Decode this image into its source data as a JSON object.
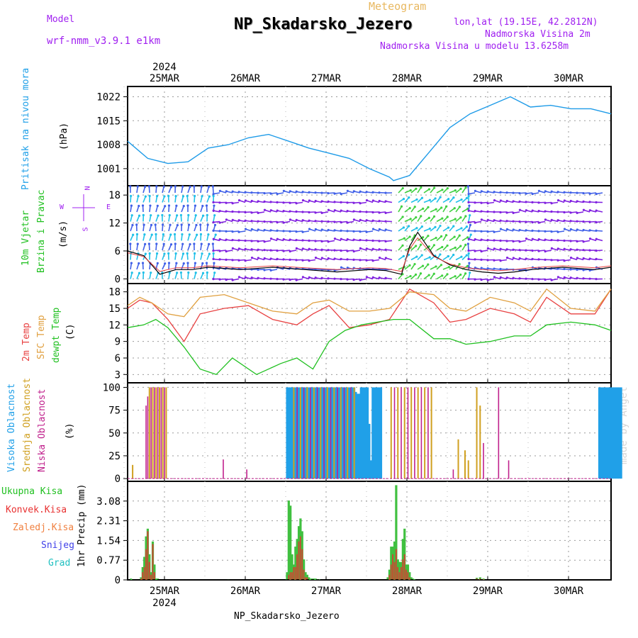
{
  "header": {
    "model_label": "Model",
    "model_name": "wrf-nmm_v3.9.1 e1km",
    "product": "Meteogram",
    "station": "NP_Skadarsko_Jezero",
    "lonlat": "lon,lat (19.15E, 42.2812N)",
    "elevation": "Nadmorska Visina 2m",
    "model_elevation": "Nadmorska Visina u modelu 13.6258m",
    "footer_station": "NP_Skadarsko_Jezero",
    "watermark": "made by Angel",
    "year": "2024"
  },
  "wind_compass": {
    "n": "N",
    "w": "W",
    "e": "E",
    "s": "S"
  },
  "colors": {
    "pressure": "#1e9be8",
    "temp2m": "#e84040",
    "sfc": "#e0a040",
    "dewpt": "#20c020",
    "high_cloud": "#20a0e8",
    "mid_cloud": "#d0a020",
    "low_cloud": "#c0208c",
    "precip_total": "#40c040",
    "precip_conv": "#e83030",
    "precip_frz": "#f08040",
    "precip_snow": "#4040e8",
    "precip_grad": "#20c0c0",
    "wind_purple": "#8020e0",
    "wind_cyan": "#20c0e8",
    "wind_green": "#40d040"
  },
  "chart_data": [
    {
      "type": "line",
      "panel": "pressure",
      "ylabel_main": "Pritisak na nivou mora",
      "ylabel_unit": "(hPa)",
      "yticks": [
        1001,
        1008,
        1015,
        1022
      ],
      "ylim": [
        996,
        1025
      ],
      "x_day": [
        0,
        0.25,
        0.5,
        0.75,
        1.0,
        1.25,
        1.5,
        1.75,
        2.0,
        2.25,
        2.5,
        2.75,
        3.0,
        3.25,
        3.3,
        3.5,
        3.75,
        4.0,
        4.25,
        4.5,
        4.75,
        5.0,
        5.25,
        5.5,
        5.75,
        6.0
      ],
      "values": [
        1009,
        1004,
        1002.5,
        1003,
        1007,
        1008,
        1010,
        1011,
        1009,
        1007,
        1005.5,
        1004,
        1001,
        998.5,
        997.5,
        999,
        1006,
        1013,
        1017,
        1019.5,
        1022,
        1019,
        1019.5,
        1018.5,
        1018.5,
        1017
      ]
    },
    {
      "type": "line",
      "panel": "wind",
      "ylabel_main": "10m Vjetar",
      "ylabel_main2": "Brzina i Pravac",
      "ylabel_unit": "(m/s)",
      "yticks": [
        0,
        6,
        12,
        18
      ],
      "ylim": [
        -1,
        20
      ],
      "x_day": [
        0,
        0.2,
        0.4,
        0.6,
        0.8,
        1.0,
        1.4,
        1.8,
        2.2,
        2.6,
        3.0,
        3.2,
        3.4,
        3.5,
        3.6,
        3.8,
        4.0,
        4.2,
        4.4,
        4.6,
        4.8,
        5.0,
        5.4,
        5.8,
        6.0
      ],
      "values": [
        6,
        5,
        1,
        2,
        2,
        2.5,
        2,
        2.5,
        2,
        1.5,
        2,
        1.8,
        1,
        7,
        10,
        5,
        3,
        2,
        1.5,
        1.2,
        1.5,
        2,
        2.5,
        2,
        2.5
      ]
    },
    {
      "type": "line",
      "panel": "temperature",
      "ylabel_2m": "2m Temp",
      "ylabel_sfc": "SFC Temp",
      "ylabel_dew": "dewpt Temp",
      "ylabel_unit": "(C)",
      "yticks": [
        3,
        6,
        9,
        12,
        15,
        18
      ],
      "ylim": [
        1.5,
        19.5
      ],
      "series": [
        {
          "name": "2m Temp",
          "x_day": [
            0,
            0.15,
            0.3,
            0.5,
            0.7,
            0.9,
            1.2,
            1.5,
            1.8,
            2.1,
            2.3,
            2.5,
            2.75,
            3.0,
            3.25,
            3.5,
            3.8,
            4.0,
            4.2,
            4.5,
            4.8,
            5.0,
            5.2,
            5.5,
            5.8,
            6.0
          ],
          "values": [
            15,
            16.5,
            16,
            13,
            9,
            14,
            15,
            15.5,
            13,
            12,
            14,
            15.5,
            11.5,
            12,
            13,
            18.5,
            16,
            12.5,
            13,
            15,
            14,
            12.5,
            17,
            14,
            14,
            18.5
          ]
        },
        {
          "name": "SFC Temp",
          "x_day": [
            0,
            0.15,
            0.3,
            0.5,
            0.7,
            0.9,
            1.2,
            1.5,
            1.8,
            2.1,
            2.3,
            2.5,
            2.75,
            3.0,
            3.25,
            3.5,
            3.8,
            4.0,
            4.2,
            4.5,
            4.8,
            5.0,
            5.2,
            5.5,
            5.8,
            6.0
          ],
          "values": [
            15.5,
            17,
            16,
            14,
            13.5,
            17,
            17.5,
            16,
            14.5,
            14,
            16,
            16.5,
            14.5,
            14.5,
            15,
            18,
            17.5,
            15,
            14.5,
            17,
            16,
            14.5,
            18.5,
            15,
            14.5,
            18.5
          ]
        },
        {
          "name": "dewpt Temp",
          "x_day": [
            0,
            0.2,
            0.35,
            0.5,
            0.7,
            0.9,
            1.1,
            1.3,
            1.6,
            1.9,
            2.1,
            2.3,
            2.5,
            2.7,
            2.9,
            3.1,
            3.3,
            3.5,
            3.8,
            4.0,
            4.2,
            4.5,
            4.8,
            5.0,
            5.2,
            5.5,
            5.8,
            6.0
          ],
          "values": [
            11.5,
            12,
            13,
            11.5,
            8,
            4,
            3,
            6,
            3,
            5,
            6,
            4,
            9,
            11,
            12,
            12.5,
            13,
            13,
            9.5,
            9.5,
            8.5,
            9,
            10,
            10,
            12,
            12.5,
            12,
            11
          ]
        }
      ]
    },
    {
      "type": "bar",
      "panel": "cloud",
      "ylabel_high": "Visoka Oblacnost",
      "ylabel_mid": "Srednja Oblacnost",
      "ylabel_low": "Niska Oblacnost",
      "ylabel_unit": "(%)",
      "yticks": [
        0,
        25,
        50,
        75,
        100
      ],
      "ylim": [
        -3,
        105
      ],
      "high_hours": [
        95,
        96,
        97,
        98,
        99,
        100,
        101,
        102,
        103,
        104,
        105,
        106,
        107,
        108,
        109,
        110,
        111,
        112,
        113,
        114,
        115,
        116,
        117,
        118,
        119,
        120,
        121,
        122,
        123,
        124,
        125,
        126,
        127,
        128,
        129,
        130,
        131,
        132,
        133,
        134,
        135,
        136,
        137,
        138,
        139,
        140,
        141,
        142,
        143,
        144,
        145,
        146,
        147,
        148,
        149,
        150,
        151
      ],
      "high_values": [
        100,
        100,
        100,
        100,
        100,
        100,
        100,
        100,
        100,
        100,
        100,
        100,
        100,
        100,
        100,
        100,
        100,
        100,
        100,
        100,
        100,
        100,
        100,
        100,
        100,
        100,
        100,
        100,
        100,
        100,
        100,
        100,
        100,
        100,
        100,
        100,
        100,
        100,
        100,
        100,
        100,
        95,
        93,
        93,
        100,
        100,
        100,
        100,
        100,
        60,
        20,
        100,
        100,
        100,
        100,
        100,
        100
      ],
      "mid_spikes": [
        [
          3,
          15
        ],
        [
          13,
          100
        ],
        [
          15,
          100
        ],
        [
          17,
          100
        ],
        [
          19,
          100
        ],
        [
          21,
          100
        ],
        [
          23,
          100
        ],
        [
          99,
          100
        ],
        [
          103,
          100
        ],
        [
          107,
          100
        ],
        [
          111,
          100
        ],
        [
          115,
          100
        ],
        [
          119,
          100
        ],
        [
          123,
          100
        ],
        [
          127,
          100
        ],
        [
          131,
          100
        ],
        [
          135,
          100
        ],
        [
          157,
          100
        ],
        [
          161,
          100
        ],
        [
          165,
          100
        ],
        [
          169,
          100
        ],
        [
          173,
          100
        ],
        [
          177,
          100
        ],
        [
          181,
          100
        ],
        [
          197,
          43
        ],
        [
          201,
          31
        ],
        [
          203,
          20
        ],
        [
          208,
          100
        ],
        [
          210,
          80
        ]
      ],
      "low_spikes": [
        [
          11,
          80
        ],
        [
          12,
          90
        ],
        [
          14,
          100
        ],
        [
          16,
          100
        ],
        [
          18,
          100
        ],
        [
          20,
          100
        ],
        [
          22,
          100
        ],
        [
          57,
          21
        ],
        [
          71,
          10
        ],
        [
          101,
          100
        ],
        [
          105,
          100
        ],
        [
          109,
          100
        ],
        [
          113,
          100
        ],
        [
          117,
          100
        ],
        [
          121,
          100
        ],
        [
          125,
          100
        ],
        [
          129,
          100
        ],
        [
          133,
          100
        ],
        [
          159,
          100
        ],
        [
          163,
          100
        ],
        [
          167,
          100
        ],
        [
          171,
          100
        ],
        [
          175,
          100
        ],
        [
          179,
          100
        ],
        [
          194,
          10
        ],
        [
          212,
          39
        ],
        [
          221,
          100
        ],
        [
          227,
          20
        ]
      ],
      "high_block2_hours": [
        281,
        282,
        283,
        284,
        285,
        286,
        287,
        288,
        289,
        290,
        291,
        292,
        293,
        294
      ],
      "high_block2_values": [
        100,
        100,
        100,
        100,
        100,
        100,
        100,
        100,
        100,
        100,
        100,
        100,
        100,
        100
      ]
    },
    {
      "type": "bar",
      "panel": "precip",
      "ylabel_main": "1hr Precip (mm)",
      "legend": [
        "Ukupna Kisa",
        "Konvek.Kisa",
        "Zaledj.Kisa",
        "Snijeg",
        "Grad"
      ],
      "yticks": [
        "0",
        "0.77",
        "1.54",
        "2.31",
        "3.08"
      ],
      "ytick_values": [
        0,
        0.77,
        1.54,
        2.31,
        3.08
      ],
      "ylim": [
        0,
        3.85
      ],
      "hours": [
        2,
        8,
        9,
        10,
        11,
        12,
        13,
        14,
        15,
        16,
        17,
        18,
        60,
        95,
        96,
        97,
        98,
        99,
        100,
        101,
        102,
        103,
        104,
        105,
        106,
        107,
        108,
        109,
        110,
        111,
        112,
        113,
        114,
        155,
        156,
        157,
        158,
        159,
        160,
        161,
        162,
        163,
        164,
        165,
        166,
        167,
        168,
        169,
        170,
        171,
        208,
        210,
        212
      ],
      "total": [
        0.05,
        0.1,
        0.5,
        0.9,
        1.7,
        2.0,
        1.0,
        0.3,
        1.5,
        0.6,
        0.05,
        0.05,
        0.02,
        0.3,
        3.1,
        2.9,
        1.0,
        0.6,
        1.3,
        1.6,
        2.1,
        2.4,
        1.9,
        0.8,
        0.3,
        0.2,
        0.1,
        0.05,
        0.05,
        0.05,
        0.05,
        0.03,
        0.02,
        0.1,
        0.4,
        1.3,
        1.3,
        1.5,
        3.7,
        0.8,
        0.7,
        0.7,
        1.6,
        2.0,
        0.6,
        0.6,
        0.3,
        0.1,
        0.05,
        0.02,
        0.08,
        0.1,
        0.05
      ],
      "conv": [
        0,
        0.05,
        0.3,
        0.5,
        1.2,
        1.9,
        0.7,
        0.2,
        1.4,
        0.3,
        0,
        0,
        0,
        0,
        0.2,
        0.3,
        0.3,
        0.5,
        0.5,
        1.0,
        1.5,
        1.7,
        1.2,
        0.4,
        0.1,
        0.1,
        0,
        0,
        0,
        0,
        0,
        0,
        0,
        0,
        0.2,
        0.6,
        1.0,
        0.7,
        1.2,
        0.5,
        0.3,
        0.5,
        0.8,
        1.0,
        0.4,
        0.3,
        0.1,
        0,
        0,
        0,
        0.05,
        0.05,
        0.02
      ]
    }
  ],
  "x_axis": {
    "days": [
      "25MAR",
      "26MAR",
      "27MAR",
      "28MAR",
      "29MAR",
      "30MAR"
    ],
    "bottom_year": "2024"
  }
}
